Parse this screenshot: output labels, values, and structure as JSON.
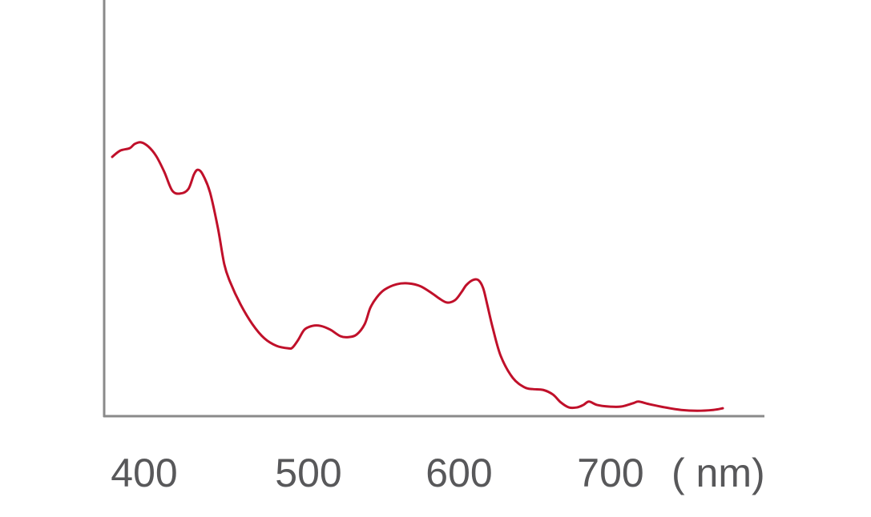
{
  "chart_data": {
    "type": "line",
    "title": "",
    "xlabel": "( nm)",
    "ylabel": "",
    "xticks": [
      400,
      500,
      600,
      700
    ],
    "xlim": [
      380,
      780
    ],
    "ylim": [
      0,
      1
    ],
    "grid": false,
    "colors": {
      "line": "#c0102a",
      "axis": "#8a8a8a",
      "text": "#58585a"
    },
    "series": [
      {
        "x": [
          379.4,
          384.5,
          390.7,
          393.8,
          397.9,
          402.6,
          407.7,
          412.9,
          418.0,
          423.2,
          428.4,
          432.0,
          434.5,
          437.6,
          442.3,
          447.4,
          451.5,
          455.2,
          461.9,
          469.6,
          477.3,
          485.1,
          492.8,
          495.4,
          499.0,
          503.1,
          508.2,
          513.4,
          519.6,
          526.3,
          531.4,
          536.6,
          541.8,
          545.4,
          549.5,
          554.6,
          562.4,
          570.1,
          577.8,
          585.6,
          589.7,
          594.8,
          600.0,
          604.1,
          607.2,
          611.3,
          614.9,
          618.0,
          620.6,
          624.2,
          629.4,
          637.1,
          644.8,
          650.0,
          656.7,
          662.9,
          668.0,
          673.2,
          678.4,
          682.5,
          686.1,
          691.2,
          699.0,
          706.7,
          714.4,
          718.0,
          724.7,
          735.1,
          745.4,
          755.7,
          766.0,
          772.2
        ],
        "y": [
          0.623,
          0.638,
          0.644,
          0.654,
          0.658,
          0.648,
          0.625,
          0.587,
          0.542,
          0.535,
          0.546,
          0.581,
          0.592,
          0.581,
          0.538,
          0.452,
          0.365,
          0.323,
          0.269,
          0.221,
          0.187,
          0.169,
          0.163,
          0.165,
          0.183,
          0.208,
          0.217,
          0.217,
          0.208,
          0.192,
          0.19,
          0.196,
          0.221,
          0.26,
          0.285,
          0.304,
          0.317,
          0.319,
          0.312,
          0.294,
          0.283,
          0.273,
          0.279,
          0.298,
          0.315,
          0.327,
          0.327,
          0.308,
          0.269,
          0.212,
          0.144,
          0.092,
          0.069,
          0.065,
          0.063,
          0.052,
          0.033,
          0.021,
          0.021,
          0.027,
          0.035,
          0.027,
          0.023,
          0.023,
          0.031,
          0.035,
          0.029,
          0.021,
          0.015,
          0.013,
          0.015,
          0.019
        ]
      }
    ]
  }
}
